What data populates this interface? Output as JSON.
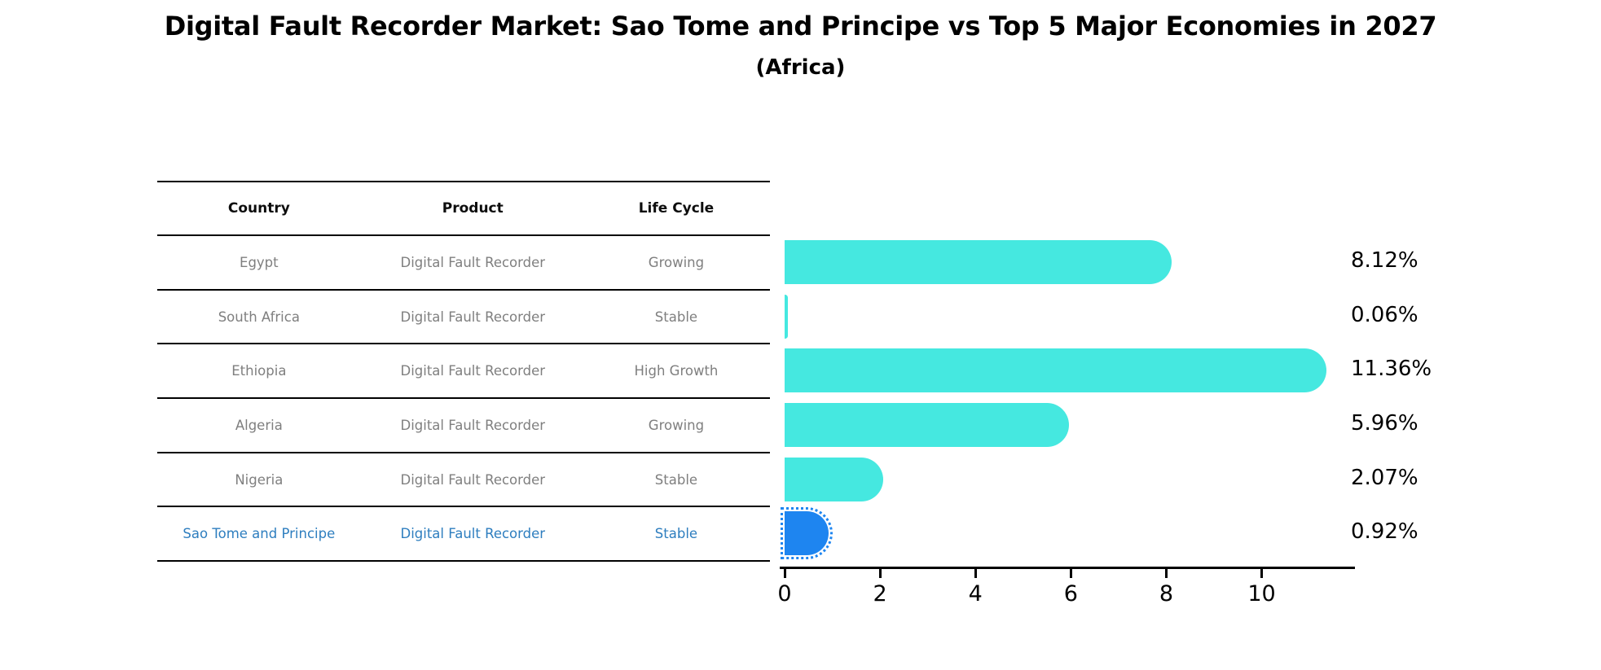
{
  "title": "Digital Fault Recorder Market: Sao Tome and Principe vs Top 5 Major Economies in 2027",
  "subtitle": "(Africa)",
  "table": {
    "headers": [
      "Country",
      "Product",
      "Life Cycle"
    ],
    "rows": [
      {
        "country": "Egypt",
        "product": "Digital Fault Recorder",
        "life_cycle": "Growing",
        "highlight": false
      },
      {
        "country": "South Africa",
        "product": "Digital Fault Recorder",
        "life_cycle": "Stable",
        "highlight": false
      },
      {
        "country": "Ethiopia",
        "product": "Digital Fault Recorder",
        "life_cycle": "High Growth",
        "highlight": false
      },
      {
        "country": "Algeria",
        "product": "Digital Fault Recorder",
        "life_cycle": "Growing",
        "highlight": false
      },
      {
        "country": "Nigeria",
        "product": "Digital Fault Recorder",
        "life_cycle": "Stable",
        "highlight": false
      },
      {
        "country": "Sao Tome and Principe",
        "product": "Digital Fault Recorder",
        "life_cycle": "Stable",
        "highlight": true
      }
    ]
  },
  "chart_data": {
    "type": "bar",
    "orientation": "horizontal",
    "title": "Digital Fault Recorder Market: Sao Tome and Principe vs Top 5 Major Economies in 2027",
    "subtitle": "(Africa)",
    "categories": [
      "Egypt",
      "South Africa",
      "Ethiopia",
      "Algeria",
      "Nigeria",
      "Sao Tome and Principe"
    ],
    "values": [
      8.12,
      0.06,
      11.36,
      5.96,
      2.07,
      0.92
    ],
    "value_labels": [
      "8.12%",
      "0.06%",
      "11.36%",
      "5.96%",
      "2.07%",
      "0.92%"
    ],
    "xlabel": "",
    "ylabel": "",
    "xlim": [
      0,
      11.75
    ],
    "xticks": [
      0,
      2,
      4,
      6,
      8,
      10
    ],
    "grid": false,
    "legend": false,
    "highlight_index": 5
  },
  "colors": {
    "bar": "#45e8e0",
    "highlight_bar": "#1e85f0",
    "highlight_text": "#2e7ebf",
    "row_text": "#7f7f7f",
    "axis": "#000000"
  }
}
